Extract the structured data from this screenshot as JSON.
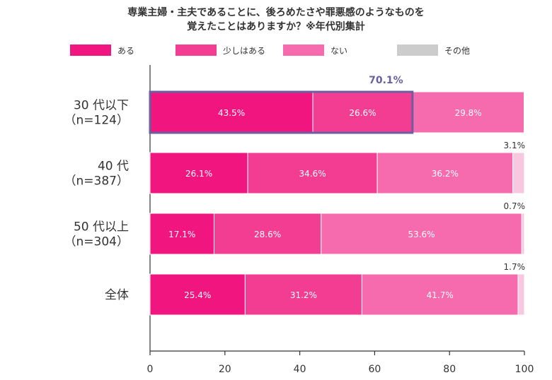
{
  "chart_data": {
    "type": "bar",
    "orientation": "horizontal",
    "stacked": true,
    "title": [
      "専業主婦・主夫であることに、後ろめたさや罪悪感のようなものを",
      "覚えたことはありますか？※年代別集計"
    ],
    "categories": [
      [
        "30 代以下",
        "（n=124）"
      ],
      [
        "40 代",
        "（n=387）"
      ],
      [
        "50 代以上",
        "（n=304）"
      ],
      [
        "全体"
      ]
    ],
    "series": [
      {
        "name": "ある",
        "color": "#f0157f",
        "values": [
          43.5,
          26.1,
          17.1,
          25.4
        ]
      },
      {
        "name": "少しはある",
        "color": "#f23d93",
        "values": [
          26.6,
          34.6,
          28.6,
          31.2
        ]
      },
      {
        "name": "ない",
        "color": "#f56bad",
        "values": [
          29.8,
          36.2,
          53.6,
          41.7
        ]
      },
      {
        "name": "その他",
        "color": "#f7c8df",
        "values": [
          0,
          3.1,
          0.7,
          1.7
        ]
      }
    ],
    "value_labels": [
      [
        "43.5%",
        "26.6%",
        "29.8%",
        ""
      ],
      [
        "26.1%",
        "34.6%",
        "36.2%",
        "3.1%"
      ],
      [
        "17.1%",
        "28.6%",
        "53.6%",
        "0.7%"
      ],
      [
        "25.4%",
        "31.2%",
        "41.7%",
        "1.7%"
      ]
    ],
    "xlim": [
      0,
      100
    ],
    "xticks": [
      0,
      20,
      40,
      60,
      80,
      100
    ],
    "legend_position": "top",
    "highlight": {
      "category_index": 0,
      "series_count": 2,
      "value": 70.1,
      "label": "70.1%",
      "color": "#6b5fa0"
    }
  },
  "legend_swatch_other": "#cccccc"
}
